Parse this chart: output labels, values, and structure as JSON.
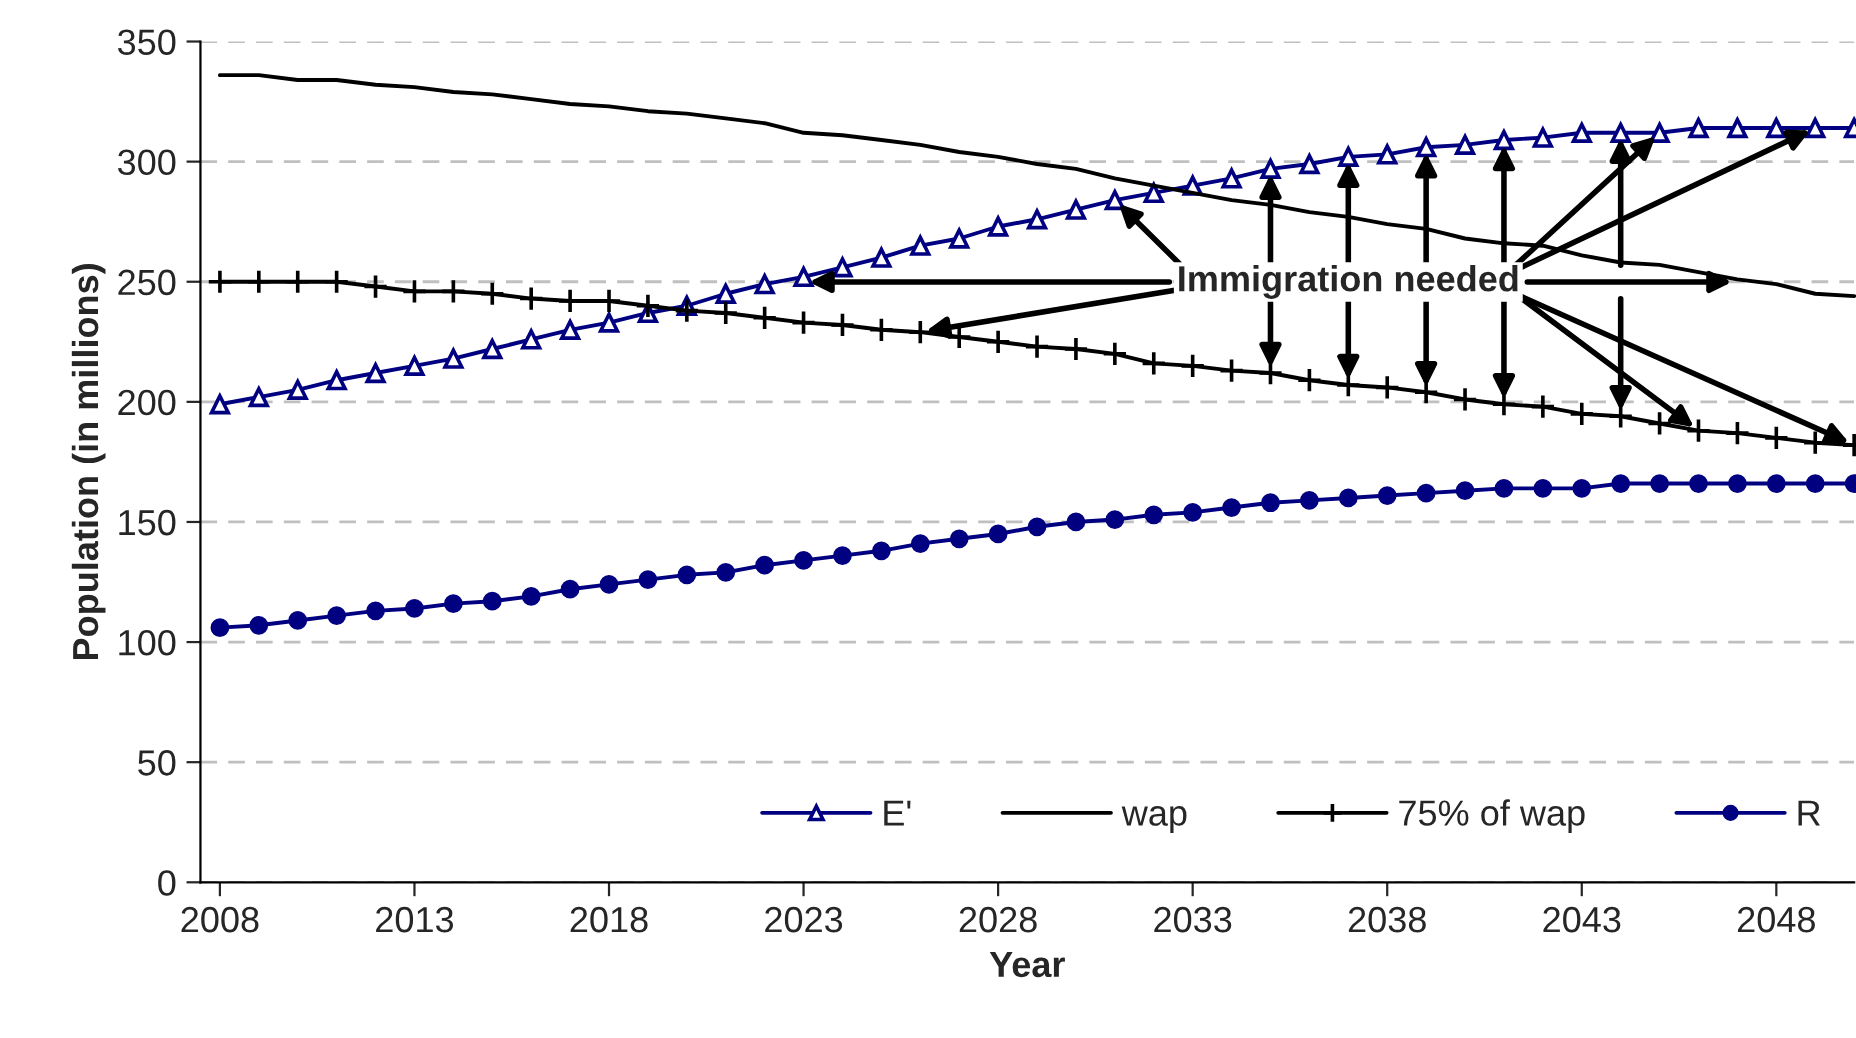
{
  "chart_data": {
    "type": "line",
    "xlabel": "Year",
    "ylabel": "Population (in millions)",
    "x": [
      2008,
      2009,
      2010,
      2011,
      2012,
      2013,
      2014,
      2015,
      2016,
      2017,
      2018,
      2019,
      2020,
      2021,
      2022,
      2023,
      2024,
      2025,
      2026,
      2027,
      2028,
      2029,
      2030,
      2031,
      2032,
      2033,
      2034,
      2035,
      2036,
      2037,
      2038,
      2039,
      2040,
      2041,
      2042,
      2043,
      2044,
      2045,
      2046,
      2047,
      2048,
      2049,
      2050
    ],
    "xlim": [
      2007.5,
      2050
    ],
    "xticks": [
      2008,
      2013,
      2018,
      2023,
      2028,
      2033,
      2038,
      2043,
      2048
    ],
    "ylim": [
      0,
      350
    ],
    "yticks": [
      0,
      50,
      100,
      150,
      200,
      250,
      300,
      350
    ],
    "grid": "y",
    "legend": "bottom",
    "series": [
      {
        "name": "E'",
        "color": "#000080",
        "marker": "triangle",
        "values": [
          199,
          202,
          205,
          209,
          212,
          215,
          218,
          222,
          226,
          230,
          233,
          237,
          240,
          245,
          249,
          252,
          256,
          260,
          265,
          268,
          273,
          276,
          280,
          284,
          287,
          290,
          293,
          297,
          299,
          302,
          303,
          306,
          307,
          309,
          310,
          312,
          312,
          312,
          314,
          314,
          314,
          314,
          314
        ]
      },
      {
        "name": "wap",
        "color": "#000000",
        "marker": "none",
        "values": [
          336,
          336,
          334,
          334,
          332,
          331,
          329,
          328,
          326,
          324,
          323,
          321,
          320,
          318,
          316,
          312,
          311,
          309,
          307,
          304,
          302,
          299,
          297,
          293,
          290,
          287,
          284,
          282,
          279,
          277,
          274,
          272,
          268,
          266,
          265,
          261,
          258,
          257,
          254,
          251,
          249,
          245,
          244
        ]
      },
      {
        "name": "75% of wap",
        "color": "#000000",
        "marker": "cross",
        "values": [
          250,
          250,
          250,
          250,
          248,
          246,
          246,
          245,
          243,
          242,
          242,
          240,
          238,
          237,
          235,
          233,
          232,
          230,
          229,
          227,
          225,
          223,
          222,
          220,
          216,
          215,
          213,
          212,
          209,
          207,
          206,
          204,
          201,
          199,
          198,
          195,
          194,
          191,
          188,
          187,
          185,
          183,
          182
        ]
      },
      {
        "name": "R",
        "color": "#000080",
        "marker": "circle",
        "values": [
          106,
          107,
          109,
          111,
          113,
          114,
          116,
          117,
          119,
          122,
          124,
          126,
          128,
          129,
          132,
          134,
          136,
          138,
          141,
          143,
          145,
          148,
          150,
          151,
          153,
          154,
          156,
          158,
          159,
          160,
          161,
          162,
          163,
          164,
          164,
          164,
          166,
          166,
          166,
          166,
          166,
          166,
          166
        ]
      }
    ],
    "annotations": [
      {
        "text": "Immigration needed",
        "x": 2037,
        "y": 302
      }
    ]
  }
}
